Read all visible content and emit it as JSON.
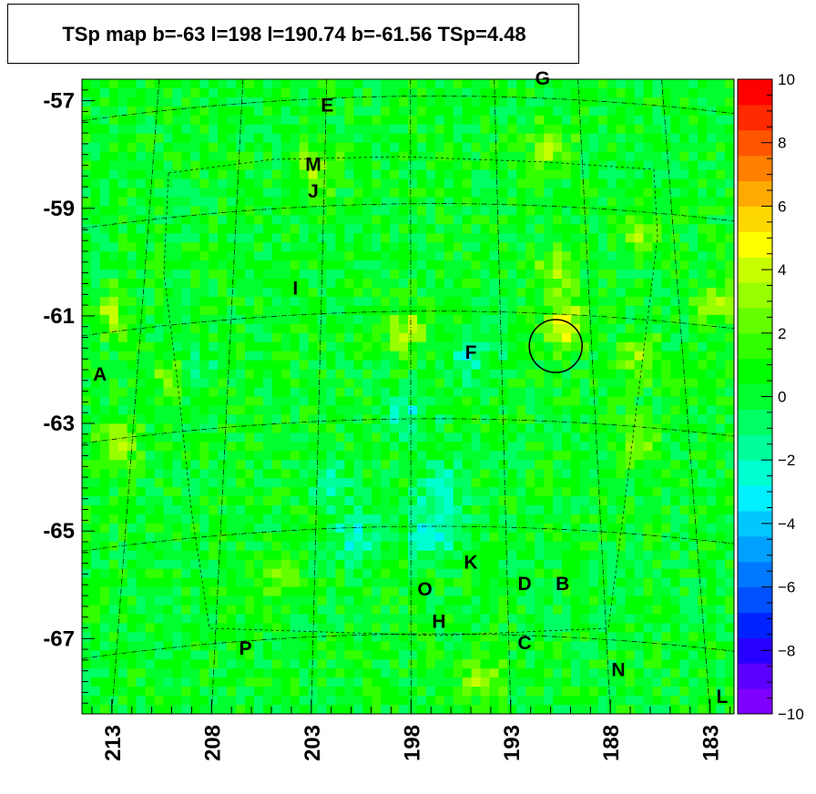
{
  "title": "TSp map b=-63 l=198 l=190.74 b=-61.56 TSp=4.48",
  "chart_data": {
    "type": "heatmap",
    "title": "TSp map b=-63 l=198 l=190.74 b=-61.56 TSp=4.48",
    "x_axis": {
      "ticks": [
        213,
        208,
        203,
        198,
        193,
        188,
        183
      ],
      "range": [
        214.5,
        181.8
      ],
      "reversed": true
    },
    "y_axis": {
      "ticks": [
        -57,
        -59,
        -61,
        -63,
        -65,
        -67
      ],
      "range": [
        -68.4,
        -56.6
      ]
    },
    "colorbar": {
      "ticks": [
        10,
        8,
        6,
        4,
        2,
        0,
        -2,
        -4,
        -6,
        -8,
        -10
      ],
      "range": [
        -10,
        10
      ]
    },
    "background_level": 0.3,
    "hotspots": [
      {
        "l": 190.3,
        "b": -61.2,
        "value": 4.48
      },
      {
        "l": 212.7,
        "b": -63.4,
        "value": 3.2
      },
      {
        "l": 210.0,
        "b": -62.1,
        "value": 3.0
      },
      {
        "l": 213.0,
        "b": -61.0,
        "value": 2.8
      },
      {
        "l": 198.2,
        "b": -61.3,
        "value": 2.9
      },
      {
        "l": 202.8,
        "b": -58.3,
        "value": 3.0
      },
      {
        "l": 191.0,
        "b": -57.9,
        "value": 2.6
      },
      {
        "l": 186.5,
        "b": -59.5,
        "value": 2.5
      },
      {
        "l": 186.6,
        "b": -61.8,
        "value": 2.5
      },
      {
        "l": 190.7,
        "b": -60.2,
        "value": 2.8
      },
      {
        "l": 194.5,
        "b": -67.7,
        "value": 2.7
      },
      {
        "l": 204.5,
        "b": -65.8,
        "value": 2.4
      },
      {
        "l": 182.6,
        "b": -60.8,
        "value": 2.6
      },
      {
        "l": 186.7,
        "b": -63.4,
        "value": 2.2
      },
      {
        "l": 196.5,
        "b": -64.2,
        "value": -2.5
      },
      {
        "l": 198.2,
        "b": -62.8,
        "value": -2.2
      },
      {
        "l": 196.8,
        "b": -65.0,
        "value": -3.6
      },
      {
        "l": 195.0,
        "b": -61.7,
        "value": -2.2
      },
      {
        "l": 200.8,
        "b": -65.1,
        "value": -2.5
      },
      {
        "l": 209.2,
        "b": -62.0,
        "value": -2.0
      },
      {
        "l": 202.0,
        "b": -64.0,
        "value": -1.8
      }
    ],
    "marked_source": {
      "l": 190.74,
      "b": -61.56,
      "TSp": 4.48
    },
    "annotations": [
      {
        "text": "E",
        "l": 202.2,
        "b": -57.2
      },
      {
        "text": "G",
        "l": 191.4,
        "b": -56.7
      },
      {
        "text": "M",
        "l": 202.9,
        "b": -58.3
      },
      {
        "text": "J",
        "l": 202.9,
        "b": -58.8
      },
      {
        "text": "I",
        "l": 203.8,
        "b": -60.6
      },
      {
        "text": "F",
        "l": 195.0,
        "b": -61.8
      },
      {
        "text": "A",
        "l": 213.6,
        "b": -62.2
      },
      {
        "text": "K",
        "l": 195.0,
        "b": -65.7
      },
      {
        "text": "D",
        "l": 192.3,
        "b": -66.1
      },
      {
        "text": "B",
        "l": 190.4,
        "b": -66.1
      },
      {
        "text": "O",
        "l": 197.3,
        "b": -66.2
      },
      {
        "text": "H",
        "l": 196.6,
        "b": -66.8
      },
      {
        "text": "C",
        "l": 192.3,
        "b": -67.2
      },
      {
        "text": "P",
        "l": 206.3,
        "b": -67.3
      },
      {
        "text": "N",
        "l": 187.6,
        "b": -67.7
      },
      {
        "text": "L",
        "l": 182.4,
        "b": -68.2
      }
    ]
  },
  "colors": {
    "palette": [
      "#7f00ff",
      "#5a00ff",
      "#2800ff",
      "#0023ff",
      "#0050ff",
      "#0078ff",
      "#00a0ff",
      "#00c8ff",
      "#00f0ff",
      "#00ffd0",
      "#00ff9a",
      "#00ff64",
      "#00ff2e",
      "#00ff00",
      "#32ff00",
      "#64ff00",
      "#96ff00",
      "#c8ff00",
      "#ffff00",
      "#ffd700",
      "#ffaa00",
      "#ff7f00",
      "#ff5500",
      "#ff2a00",
      "#ff0000"
    ]
  }
}
